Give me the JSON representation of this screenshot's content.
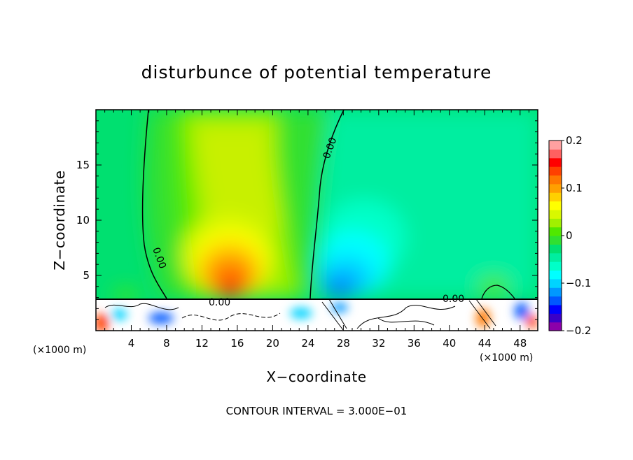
{
  "chart_data": {
    "type": "heatmap",
    "title": "disturbunce of potential temperature",
    "xlabel": "X−coordinate",
    "ylabel": "Z−coordinate",
    "x_unit": "(×1000 m)",
    "z_unit": "(×1000 m)",
    "xlim": [
      0,
      50
    ],
    "ylim": [
      0,
      20
    ],
    "x_ticks": [
      4,
      8,
      12,
      16,
      20,
      24,
      28,
      32,
      36,
      40,
      44,
      48
    ],
    "x_tick_labels": [
      "4",
      "8",
      "12",
      "16",
      "20",
      "24",
      "28",
      "32",
      "36",
      "40",
      "44",
      "48"
    ],
    "y_ticks": [
      5,
      10,
      15
    ],
    "y_tick_labels": [
      "5",
      "10",
      "15"
    ],
    "colorbar": {
      "min": -0.2,
      "max": 0.2,
      "ticks": [
        0.2,
        0.1,
        0,
        -0.1,
        -0.2
      ],
      "tick_labels": [
        "0.2",
        "0.1",
        "0",
        "−0.1",
        "−0.2"
      ],
      "colors": [
        "#8b00aa",
        "#3a00c8",
        "#0000ff",
        "#0058ff",
        "#0098ff",
        "#00d4ff",
        "#00ffff",
        "#00ffc8",
        "#00eea0",
        "#00e070",
        "#30e030",
        "#50e800",
        "#a0f000",
        "#d8f800",
        "#ffff00",
        "#ffd000",
        "#ffa000",
        "#ff7800",
        "#ff4000",
        "#ff0000",
        "#ff6060",
        "#ffa0a0"
      ]
    },
    "contour_label": "0.00",
    "contour_interval_text": "CONTOUR INTERVAL = 3.000E−01"
  }
}
